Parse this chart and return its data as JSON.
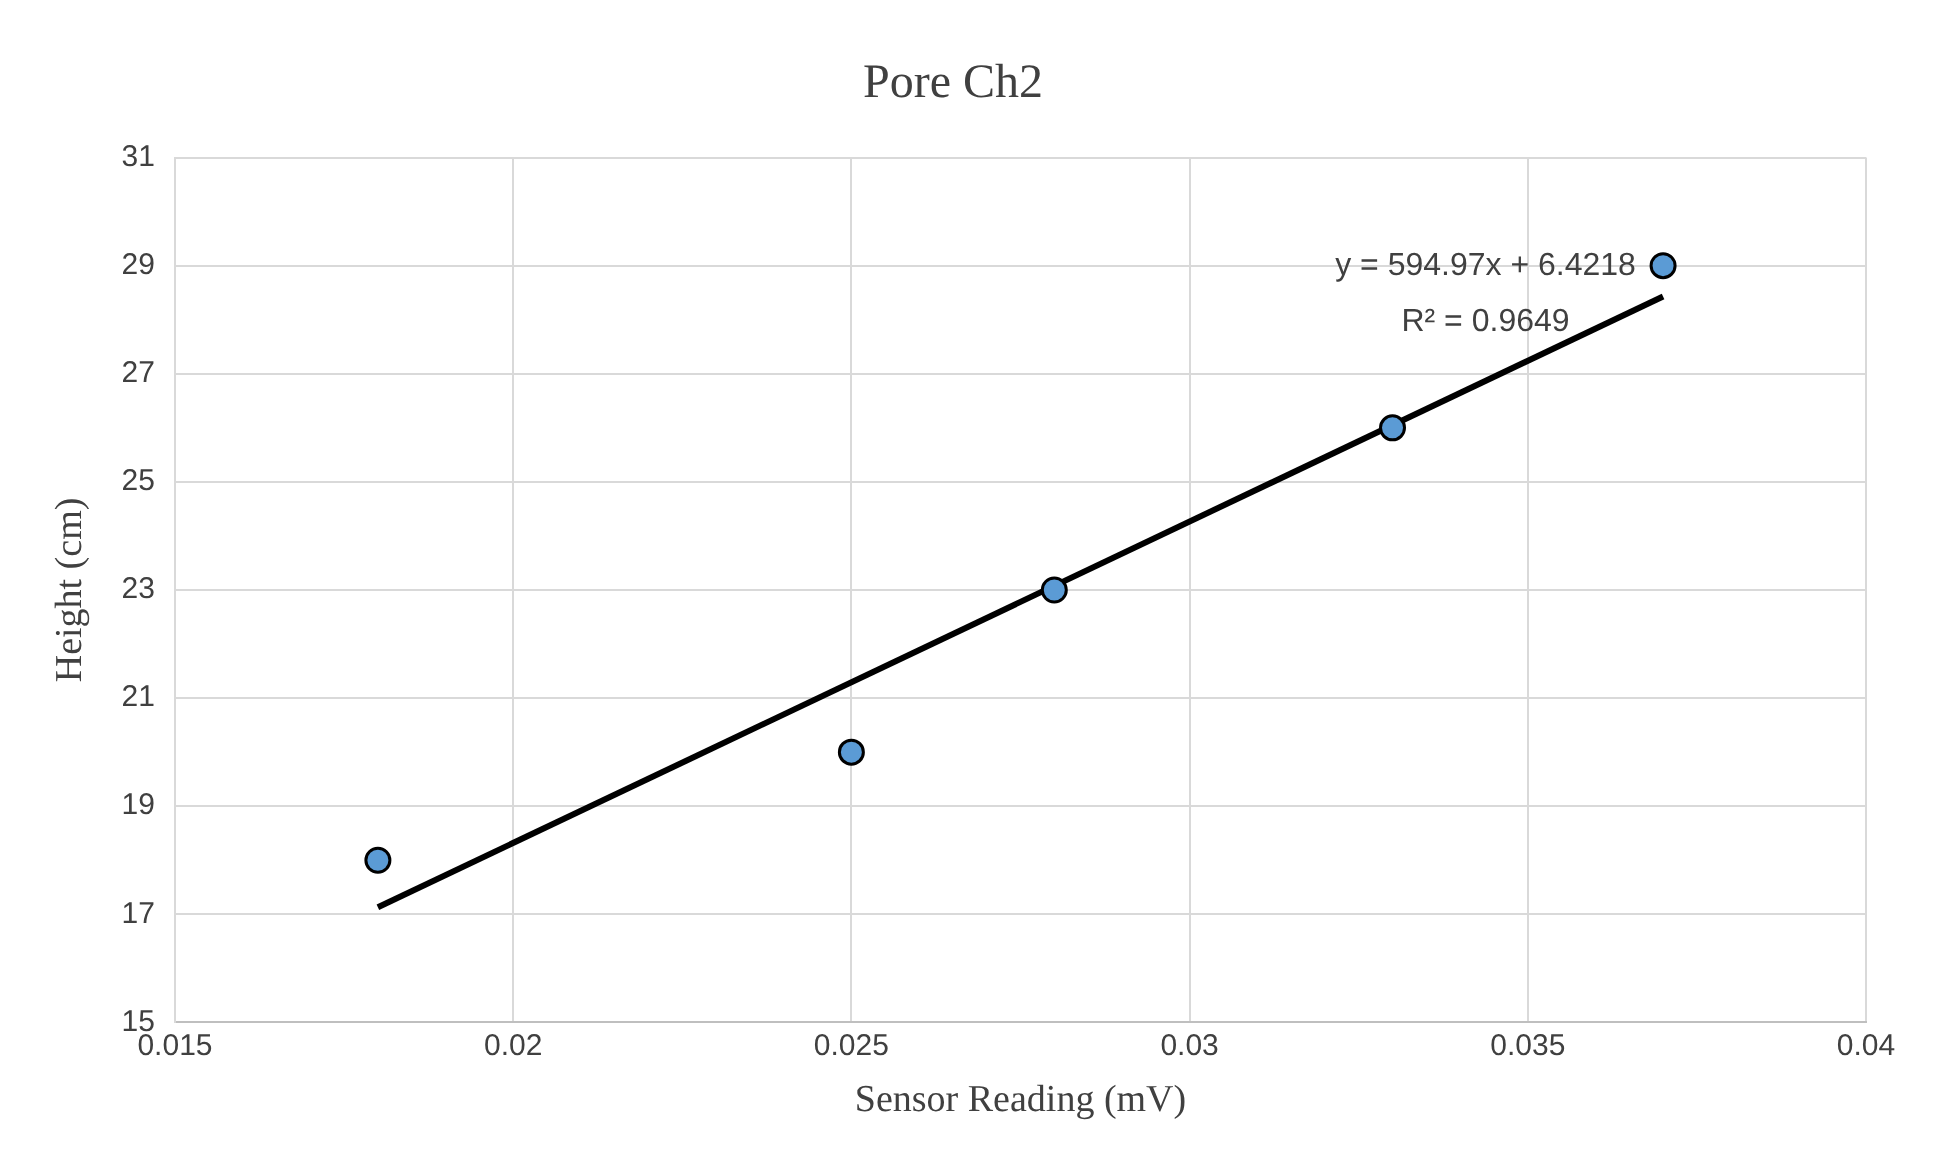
{
  "chart_data": {
    "type": "scatter",
    "title": "Pore Ch2",
    "xlabel": "Sensor Reading (mV)",
    "ylabel": "Height (cm)",
    "series": [
      {
        "type": "scatter",
        "color": "#5b9bd5",
        "marker": "circle",
        "x": [
          0.018,
          0.025,
          0.028,
          0.033,
          0.037
        ],
        "values": [
          18,
          20,
          23,
          26,
          29
        ]
      },
      {
        "type": "line",
        "color": "#000000",
        "x": [
          0.018,
          0.037
        ],
        "values": [
          17.13,
          28.43
        ]
      }
    ],
    "xlim": [
      0.015,
      0.04
    ],
    "xticks": [
      0.015,
      0.02,
      0.025,
      0.03,
      0.035,
      0.04
    ],
    "ylim": [
      15,
      31
    ],
    "yticks": [
      15,
      17,
      19,
      21,
      23,
      25,
      27,
      29,
      31
    ],
    "grid": true,
    "legend": false,
    "annotations": [
      "y = 594.97x + 6.4218",
      "R² = 0.9649"
    ]
  }
}
